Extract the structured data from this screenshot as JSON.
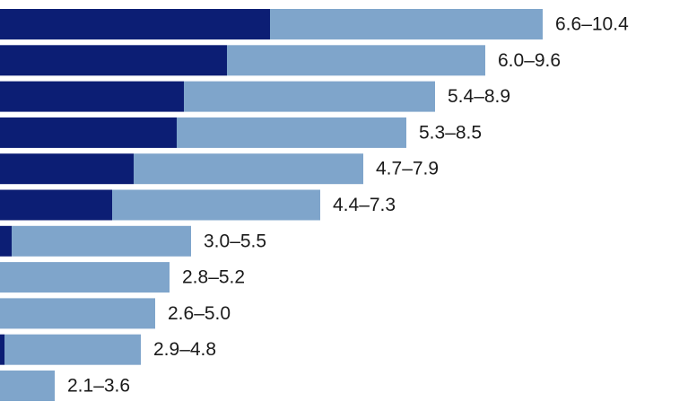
{
  "chart_data": {
    "type": "range-bar",
    "series": [
      {
        "color": "#0c1e74",
        "values": [
          6.6,
          6.0,
          5.4,
          5.3,
          4.7,
          4.4,
          3.0,
          2.8,
          2.6,
          2.9,
          2.1
        ]
      },
      {
        "color": "#7fa5cb",
        "values": [
          10.4,
          9.6,
          8.9,
          8.5,
          7.9,
          7.3,
          5.5,
          5.2,
          5.0,
          4.8,
          3.6
        ],
        "value_labels": [
          "6.6–10.4",
          "6.0–9.6",
          "5.4–8.9",
          "5.3–8.5",
          "4.7–7.9",
          "4.4–7.3",
          "3.0–5.5",
          "2.8–5.2",
          "2.6–5.0",
          "2.9–4.8",
          "2.1–3.6"
        ]
      }
    ],
    "xlim": [
      2.8375,
      12.425
    ]
  }
}
